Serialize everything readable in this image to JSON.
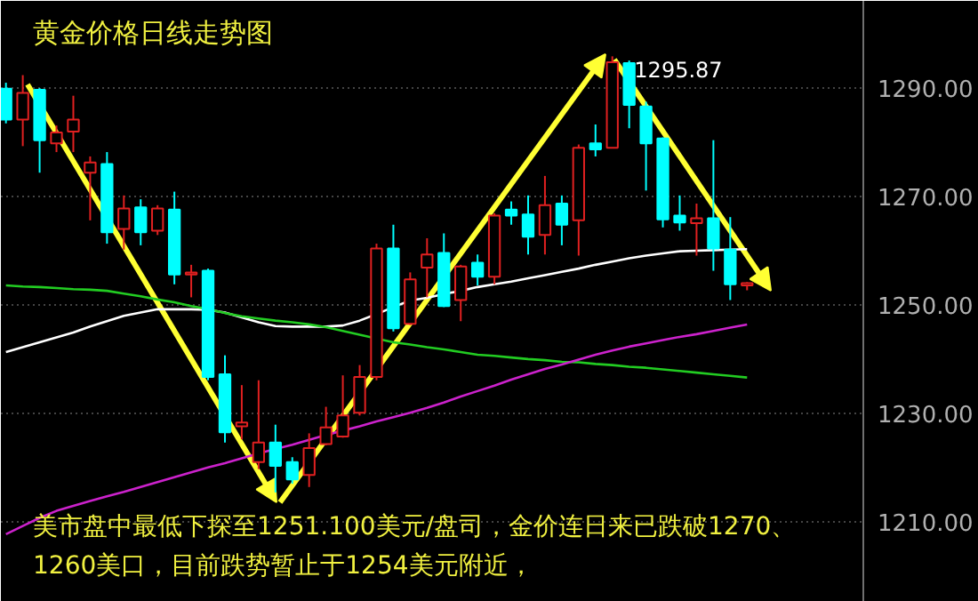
{
  "chart_data": {
    "type": "candlestick",
    "title": "黄金价格日线走势图",
    "categories": [
      null,
      null,
      null,
      null,
      null,
      null,
      null,
      null,
      null,
      null,
      null,
      null,
      null,
      null,
      null,
      null,
      null,
      null,
      null,
      null,
      null,
      null,
      null,
      null,
      null,
      null,
      null,
      null,
      null,
      null,
      null,
      null,
      null,
      null,
      null,
      null,
      null,
      null,
      null,
      null,
      null,
      null,
      null,
      null,
      null
    ],
    "ohlc": [
      [
        1289.9,
        1291,
        1283.5,
        1284.2
      ],
      [
        1284.2,
        1292.4,
        1279.3,
        1289.1
      ],
      [
        1289.7,
        1290,
        1274.4,
        1280.4
      ],
      [
        1279.8,
        1283.1,
        1278.2,
        1281.8
      ],
      [
        1282.0,
        1288.6,
        1278.2,
        1284.2
      ],
      [
        1274.4,
        1277.4,
        1265.6,
        1276.3
      ],
      [
        1276.0,
        1278.2,
        1261.3,
        1263.4
      ],
      [
        1264.0,
        1270.2,
        1260.2,
        1267.8
      ],
      [
        1268.0,
        1269.5,
        1261.0,
        1263.4
      ],
      [
        1263.7,
        1268.4,
        1262.9,
        1267.8
      ],
      [
        1267.6,
        1270.9,
        1253.8,
        1255.6
      ],
      [
        1255.6,
        1257.4,
        1251.4,
        1256.0
      ],
      [
        1256.3,
        1256.7,
        1236.1,
        1236.7
      ],
      [
        1237.2,
        1240.7,
        1224.6,
        1226.5
      ],
      [
        1227.6,
        1235.2,
        1225.2,
        1228.3
      ],
      [
        1221.0,
        1236.1,
        1219.7,
        1224.6
      ],
      [
        1224.6,
        1227.9,
        1215.4,
        1220.3
      ],
      [
        1221.0,
        1221.9,
        1217.0,
        1217.8
      ],
      [
        1218.6,
        1226.3,
        1216.4,
        1223.6
      ],
      [
        1224.3,
        1231.2,
        1224.1,
        1227.4
      ],
      [
        1225.7,
        1237.0,
        1225.5,
        1229.6
      ],
      [
        1230.1,
        1238.9,
        1229.6,
        1236.7
      ],
      [
        1236.7,
        1261.3,
        1236.1,
        1260.4
      ],
      [
        1260.4,
        1264.8,
        1245.1,
        1245.7
      ],
      [
        1246.5,
        1256.0,
        1246.3,
        1254.7
      ],
      [
        1256.9,
        1262.3,
        1251.4,
        1259.3
      ],
      [
        1259.6,
        1263.2,
        1249.6,
        1249.8
      ],
      [
        1250.9,
        1257.4,
        1247.0,
        1257.1
      ],
      [
        1257.8,
        1259.3,
        1253.6,
        1255.2
      ],
      [
        1255.2,
        1266.9,
        1253.8,
        1266.5
      ],
      [
        1267.6,
        1269.1,
        1264.8,
        1266.5
      ],
      [
        1266.7,
        1270.2,
        1259.3,
        1262.6
      ],
      [
        1262.9,
        1273.8,
        1259.3,
        1268.4
      ],
      [
        1268.7,
        1270.2,
        1261.0,
        1264.8
      ],
      [
        1265.6,
        1279.6,
        1259.1,
        1279.0
      ],
      [
        1279.8,
        1283.3,
        1277.4,
        1278.7
      ],
      [
        1279.0,
        1295.87,
        1279.0,
        1294.8
      ],
      [
        1294.6,
        1295.1,
        1282.6,
        1286.9
      ],
      [
        1286.6,
        1287.5,
        1271.1,
        1279.8
      ],
      [
        1280.7,
        1280.9,
        1264.3,
        1265.8
      ],
      [
        1266.5,
        1270.2,
        1263.7,
        1265.2
      ],
      [
        1265.1,
        1268.7,
        1259.1,
        1266.0
      ],
      [
        1266.0,
        1280.4,
        1256.3,
        1260.4
      ],
      [
        1260.2,
        1266.2,
        1250.9,
        1253.8
      ],
      [
        1253.6,
        1254.2,
        1252.7,
        1254.0
      ]
    ],
    "colors": [
      "#00ffff",
      "#e02020",
      "#00ffff",
      "#e02020",
      "#e02020",
      "#e02020",
      "#00ffff",
      "#e02020",
      "#00ffff",
      "#e02020",
      "#00ffff",
      "#e02020",
      "#00ffff",
      "#00ffff",
      "#e02020",
      "#e02020",
      "#00ffff",
      "#00ffff",
      "#e02020",
      "#e02020",
      "#e02020",
      "#e02020",
      "#e02020",
      "#00ffff",
      "#e02020",
      "#e02020",
      "#00ffff",
      "#e02020",
      "#00ffff",
      "#e02020",
      "#00ffff",
      "#00ffff",
      "#e02020",
      "#00ffff",
      "#e02020",
      "#00ffff",
      "#e02020",
      "#00ffff",
      "#00ffff",
      "#00ffff",
      "#00ffff",
      "#e02020",
      "#00ffff",
      "#00ffff",
      "#e02020"
    ],
    "series": [
      {
        "type": "line",
        "color": "#ffffff",
        "values": [
          1241.3,
          1242.2,
          1243.1,
          1244.0,
          1244.9,
          1246.0,
          1247.0,
          1248.0,
          1248.6,
          1249.2,
          1249.2,
          1249.2,
          1249.1,
          1248.6,
          1247.7,
          1246.8,
          1246.1,
          1246.0,
          1246.0,
          1246.0,
          1246.2,
          1247.1,
          1248.3,
          1249.6,
          1250.8,
          1251.3,
          1252.0,
          1252.6,
          1253.3,
          1253.8,
          1254.3,
          1254.9,
          1255.5,
          1256.1,
          1256.7,
          1257.4,
          1258.0,
          1258.6,
          1259.1,
          1259.5,
          1259.9,
          1260.0,
          1260.1,
          1260.2,
          1260.3
        ]
      },
      {
        "type": "line",
        "color": "#22cc22",
        "values": [
          1253.6,
          1253.4,
          1253.3,
          1253.1,
          1252.9,
          1252.8,
          1252.6,
          1252.1,
          1251.6,
          1251.0,
          1250.5,
          1249.8,
          1249.2,
          1248.5,
          1247.9,
          1247.5,
          1247.1,
          1246.8,
          1246.4,
          1245.9,
          1245.2,
          1244.5,
          1243.8,
          1243.1,
          1242.7,
          1242.2,
          1241.8,
          1241.3,
          1240.8,
          1240.6,
          1240.3,
          1240.0,
          1239.8,
          1239.5,
          1239.4,
          1239.1,
          1238.9,
          1238.6,
          1238.4,
          1238.1,
          1237.8,
          1237.5,
          1237.2,
          1236.9,
          1236.6
        ]
      },
      {
        "type": "line",
        "color": "#cc22cc",
        "values": [
          1207.7,
          1209.2,
          1210.7,
          1212.0,
          1212.9,
          1213.8,
          1214.7,
          1215.5,
          1216.4,
          1217.3,
          1218.2,
          1219.1,
          1220.0,
          1220.8,
          1221.7,
          1222.6,
          1223.4,
          1224.2,
          1225.1,
          1226.0,
          1226.8,
          1227.6,
          1228.5,
          1229.3,
          1230.1,
          1231.0,
          1232.0,
          1233.1,
          1234.1,
          1235.1,
          1236.2,
          1237.2,
          1238.2,
          1239.0,
          1239.9,
          1240.8,
          1241.6,
          1242.3,
          1242.9,
          1243.5,
          1244.1,
          1244.6,
          1245.2,
          1245.8,
          1246.4
        ]
      }
    ],
    "ylim": [
      1195.2,
      1306.1
    ],
    "yticks": [
      {
        "value": 1210,
        "label": "1210.00"
      },
      {
        "value": 1230,
        "label": "1230.00"
      },
      {
        "value": 1250,
        "label": "1250.00"
      },
      {
        "value": 1270,
        "label": "1270.00"
      },
      {
        "value": 1290,
        "label": "1290.00"
      }
    ],
    "grid": "y",
    "annotations": [
      "1295.87",
      "美市盘中最低下探至1251.100美元/盘司，金价连日来已跌破1270、",
      "1260美口，目前跌势暂止于1254美元附近，"
    ]
  }
}
